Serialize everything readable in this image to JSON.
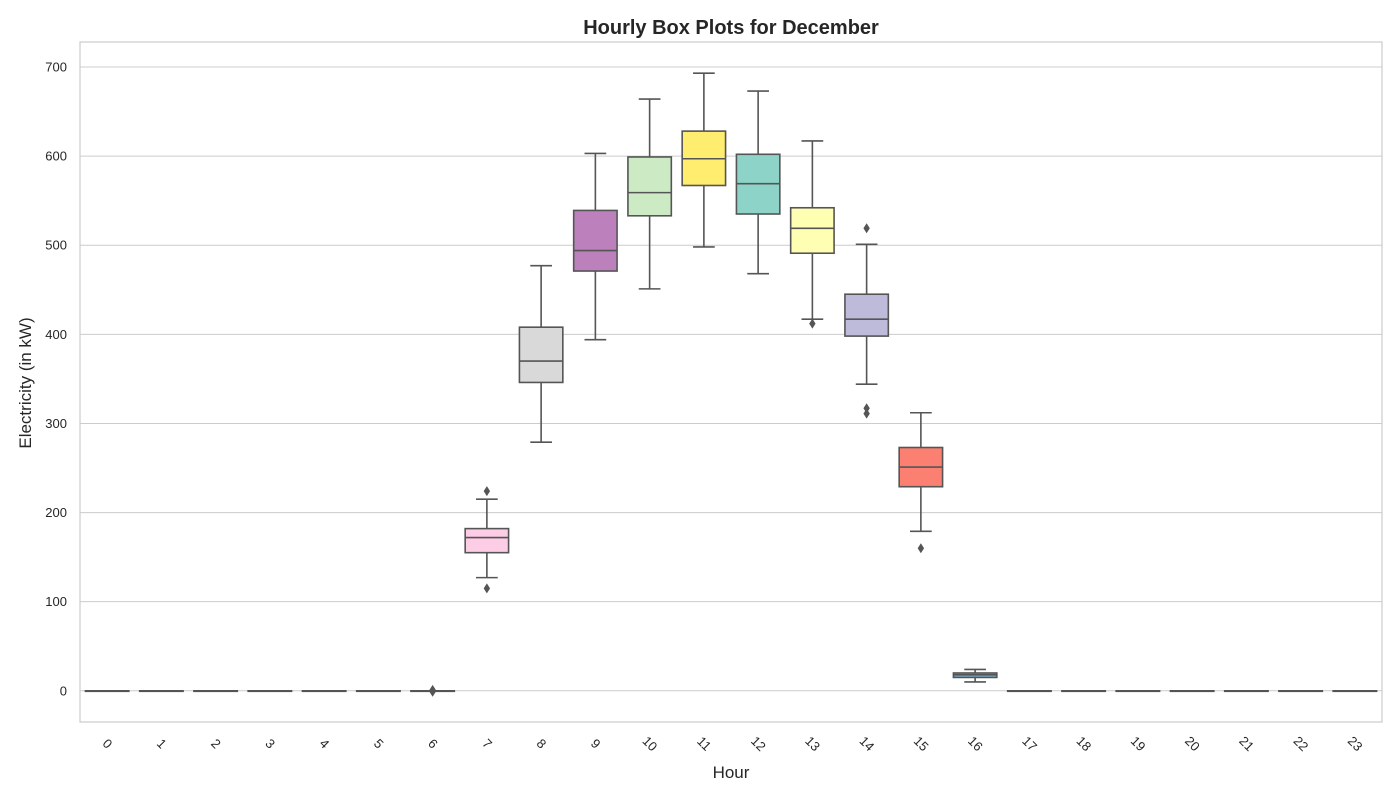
{
  "chart_data": {
    "type": "box",
    "title": "Hourly Box Plots for December",
    "xlabel": "Hour",
    "ylabel": "Electricity (in kW)",
    "ylim": [
      -35,
      728
    ],
    "yticks": [
      0,
      100,
      200,
      300,
      400,
      500,
      600,
      700
    ],
    "grid": true,
    "categories": [
      "0",
      "1",
      "2",
      "3",
      "4",
      "5",
      "6",
      "7",
      "8",
      "9",
      "10",
      "11",
      "12",
      "13",
      "14",
      "15",
      "16",
      "17",
      "18",
      "19",
      "20",
      "21",
      "22",
      "23"
    ],
    "boxes": [
      {
        "hour": "0",
        "q1": 0,
        "median": 0,
        "q3": 0,
        "whisker_low": 0,
        "whisker_high": 0,
        "outliers": [],
        "color": "#8dd3c7"
      },
      {
        "hour": "1",
        "q1": 0,
        "median": 0,
        "q3": 0,
        "whisker_low": 0,
        "whisker_high": 0,
        "outliers": [],
        "color": "#ffffb3"
      },
      {
        "hour": "2",
        "q1": 0,
        "median": 0,
        "q3": 0,
        "whisker_low": 0,
        "whisker_high": 0,
        "outliers": [],
        "color": "#bebada"
      },
      {
        "hour": "3",
        "q1": 0,
        "median": 0,
        "q3": 0,
        "whisker_low": 0,
        "whisker_high": 0,
        "outliers": [],
        "color": "#fb8072"
      },
      {
        "hour": "4",
        "q1": 0,
        "median": 0,
        "q3": 0,
        "whisker_low": 0,
        "whisker_high": 0,
        "outliers": [],
        "color": "#80b1d3"
      },
      {
        "hour": "5",
        "q1": 0,
        "median": 0,
        "q3": 0,
        "whisker_low": 0,
        "whisker_high": 0,
        "outliers": [],
        "color": "#fdb462"
      },
      {
        "hour": "6",
        "q1": 0,
        "median": 0,
        "q3": 0,
        "whisker_low": 0,
        "whisker_high": 0,
        "outliers": [
          1,
          -1
        ],
        "color": "#b3de69"
      },
      {
        "hour": "7",
        "q1": 155,
        "median": 172,
        "q3": 182,
        "whisker_low": 127,
        "whisker_high": 215,
        "outliers": [
          224,
          115
        ],
        "color": "#fccde5"
      },
      {
        "hour": "8",
        "q1": 346,
        "median": 370,
        "q3": 408,
        "whisker_low": 279,
        "whisker_high": 477,
        "outliers": [],
        "color": "#d9d9d9"
      },
      {
        "hour": "9",
        "q1": 471,
        "median": 494,
        "q3": 539,
        "whisker_low": 394,
        "whisker_high": 603,
        "outliers": [],
        "color": "#bc80bd"
      },
      {
        "hour": "10",
        "q1": 533,
        "median": 559,
        "q3": 599,
        "whisker_low": 451,
        "whisker_high": 664,
        "outliers": [],
        "color": "#ccebc5"
      },
      {
        "hour": "11",
        "q1": 567,
        "median": 597,
        "q3": 628,
        "whisker_low": 498,
        "whisker_high": 693,
        "outliers": [],
        "color": "#ffed6f"
      },
      {
        "hour": "12",
        "q1": 535,
        "median": 569,
        "q3": 602,
        "whisker_low": 468,
        "whisker_high": 673,
        "outliers": [],
        "color": "#8dd3c7"
      },
      {
        "hour": "13",
        "q1": 491,
        "median": 519,
        "q3": 542,
        "whisker_low": 417,
        "whisker_high": 617,
        "outliers": [
          412
        ],
        "color": "#ffffb3"
      },
      {
        "hour": "14",
        "q1": 398,
        "median": 417,
        "q3": 445,
        "whisker_low": 344,
        "whisker_high": 501,
        "outliers": [
          519,
          317,
          311
        ],
        "color": "#bebada"
      },
      {
        "hour": "15",
        "q1": 229,
        "median": 251,
        "q3": 273,
        "whisker_low": 179,
        "whisker_high": 312,
        "outliers": [
          160
        ],
        "color": "#fb8072"
      },
      {
        "hour": "16",
        "q1": 15,
        "median": 18,
        "q3": 20,
        "whisker_low": 10,
        "whisker_high": 24,
        "outliers": [],
        "color": "#80b1d3"
      },
      {
        "hour": "17",
        "q1": 0,
        "median": 0,
        "q3": 0,
        "whisker_low": 0,
        "whisker_high": 0,
        "outliers": [],
        "color": "#fdb462"
      },
      {
        "hour": "18",
        "q1": 0,
        "median": 0,
        "q3": 0,
        "whisker_low": 0,
        "whisker_high": 0,
        "outliers": [],
        "color": "#b3de69"
      },
      {
        "hour": "19",
        "q1": 0,
        "median": 0,
        "q3": 0,
        "whisker_low": 0,
        "whisker_high": 0,
        "outliers": [],
        "color": "#fccde5"
      },
      {
        "hour": "20",
        "q1": 0,
        "median": 0,
        "q3": 0,
        "whisker_low": 0,
        "whisker_high": 0,
        "outliers": [],
        "color": "#d9d9d9"
      },
      {
        "hour": "21",
        "q1": 0,
        "median": 0,
        "q3": 0,
        "whisker_low": 0,
        "whisker_high": 0,
        "outliers": [],
        "color": "#bc80bd"
      },
      {
        "hour": "22",
        "q1": 0,
        "median": 0,
        "q3": 0,
        "whisker_low": 0,
        "whisker_high": 0,
        "outliers": [],
        "color": "#ccebc5"
      },
      {
        "hour": "23",
        "q1": 0,
        "median": 0,
        "q3": 0,
        "whisker_low": 0,
        "whisker_high": 0,
        "outliers": [],
        "color": "#ffed6f"
      }
    ]
  }
}
